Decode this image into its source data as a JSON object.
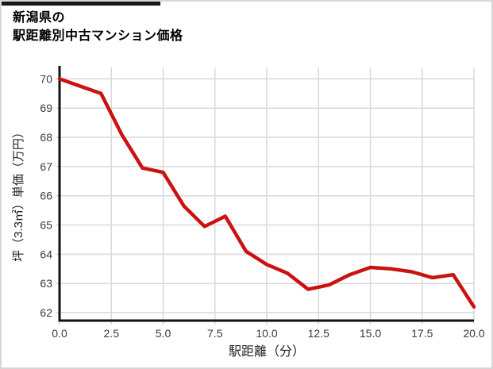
{
  "title": {
    "line1": "新潟県の",
    "line2": "駅距離別中古マンション価格"
  },
  "chart_data": {
    "type": "line",
    "x": [
      0,
      1,
      2,
      3,
      4,
      5,
      6,
      7,
      8,
      9,
      10,
      11,
      12,
      13,
      14,
      15,
      16,
      17,
      18,
      19,
      20
    ],
    "y": [
      70.0,
      69.75,
      69.5,
      68.1,
      66.95,
      66.8,
      65.65,
      64.95,
      65.3,
      64.1,
      63.65,
      63.35,
      62.8,
      62.95,
      63.3,
      63.55,
      63.5,
      63.4,
      63.2,
      63.3,
      62.2
    ],
    "xlabel": "駅距離（分）",
    "ylabel": "坪（3.3㎡）単価（万円）",
    "x_tick_values": [
      0,
      2.5,
      5,
      7.5,
      10,
      12.5,
      15,
      17.5,
      20
    ],
    "x_tick_labels": [
      "0.0",
      "2.5",
      "5.0",
      "7.5",
      "10.0",
      "12.5",
      "15.0",
      "17.5",
      "20.0"
    ],
    "y_tick_values": [
      70,
      69,
      68,
      67,
      66,
      65,
      64,
      63,
      62
    ],
    "y_tick_labels": [
      "70",
      "69",
      "68",
      "67",
      "66",
      "65",
      "64",
      "63",
      "62"
    ],
    "xlim": [
      0,
      20
    ],
    "ylim": [
      61.73,
      70.39
    ],
    "grid": true,
    "legend_position": "none",
    "line_color": "#cc1111"
  },
  "colors": {
    "accent_bar": "#161616",
    "card_border": "#d7d7d7",
    "grid": "#d9d9d9",
    "axis_spine": "#111111",
    "tick_text": "#3a3a3a",
    "label_text": "#222222",
    "background": "#ffffff"
  }
}
